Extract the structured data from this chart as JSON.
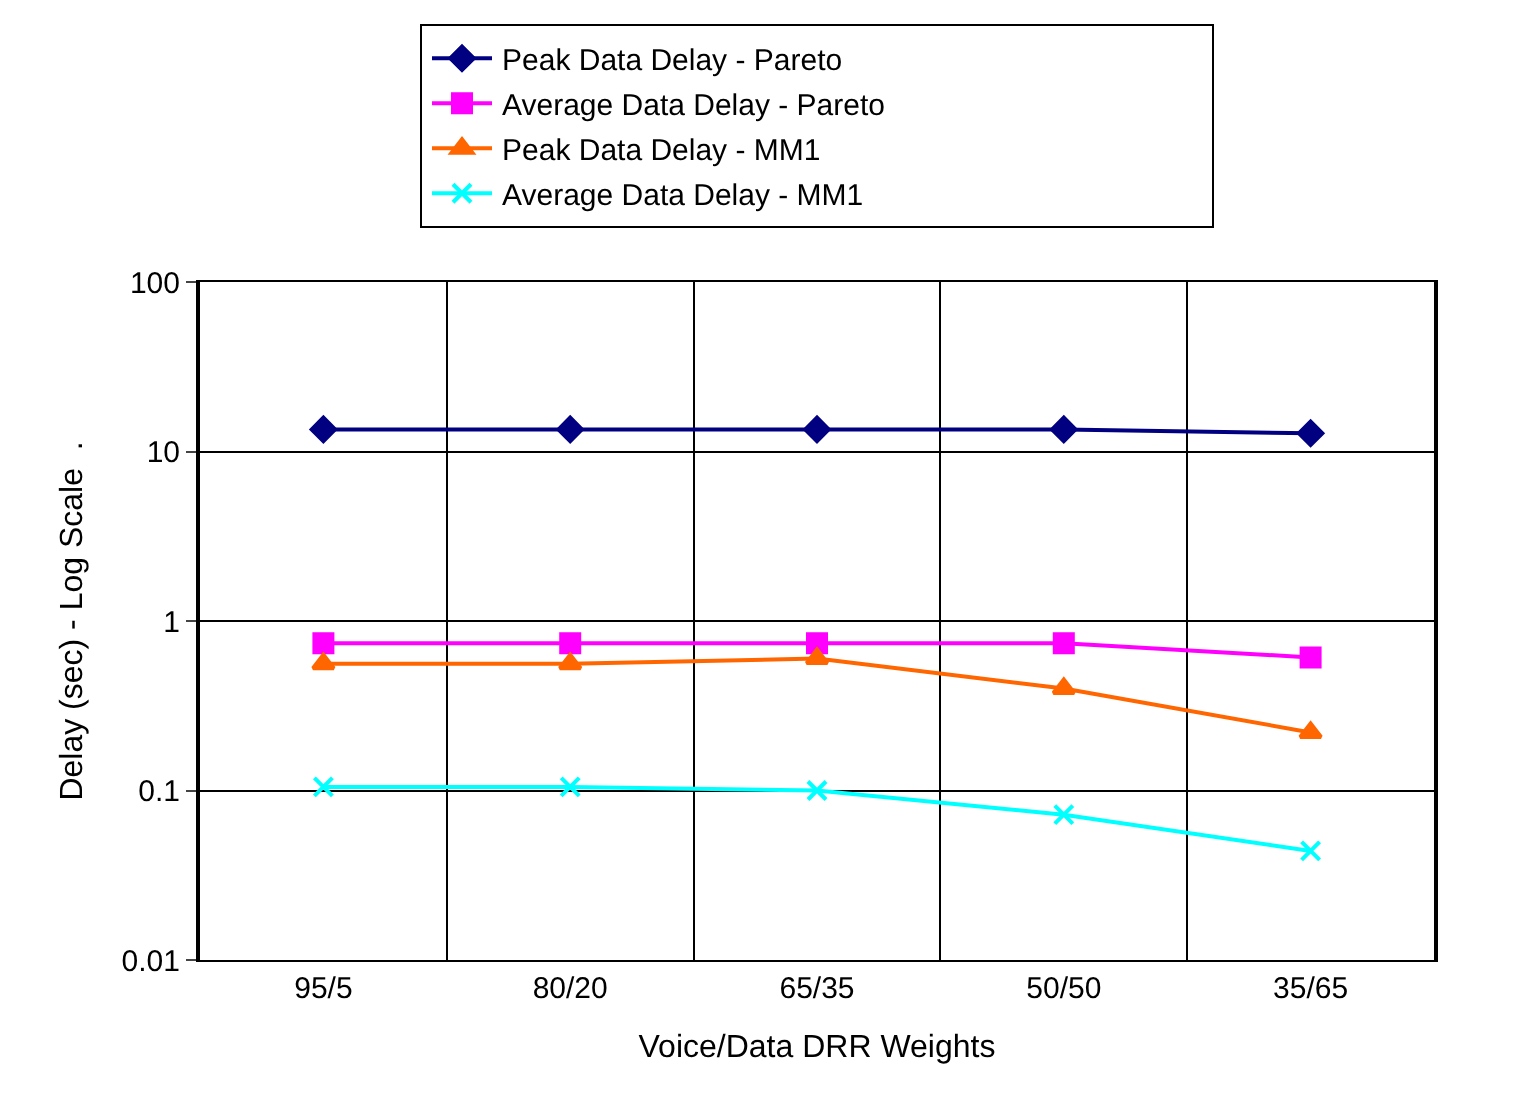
{
  "chart_data": {
    "type": "line",
    "xlabel": "Voice/Data DRR Weights",
    "ylabel": "Delay (sec) - Log Scale  .",
    "categories": [
      "95/5",
      "80/20",
      "65/35",
      "50/50",
      "35/65"
    ],
    "series": [
      {
        "name": "Peak Data Delay - Pareto",
        "color": "#000080",
        "marker": "diamond",
        "values": [
          13.5,
          13.5,
          13.5,
          13.5,
          12.8
        ]
      },
      {
        "name": "Average Data Delay - Pareto",
        "color": "#ff00ff",
        "marker": "square",
        "values": [
          0.74,
          0.74,
          0.74,
          0.74,
          0.61
        ]
      },
      {
        "name": "Peak Data Delay - MM1",
        "color": "#ff6600",
        "marker": "triangle",
        "values": [
          0.56,
          0.56,
          0.6,
          0.4,
          0.22
        ]
      },
      {
        "name": "Average Data Delay - MM1",
        "color": "#00ffff",
        "marker": "cross",
        "values": [
          0.105,
          0.105,
          0.1,
          0.072,
          0.044
        ]
      }
    ],
    "log": "y",
    "ylim": [
      0.01,
      100
    ],
    "yticks": [
      0.01,
      0.1,
      1,
      10,
      100
    ],
    "grid": true,
    "legend": "top",
    "line_style": "solid"
  }
}
